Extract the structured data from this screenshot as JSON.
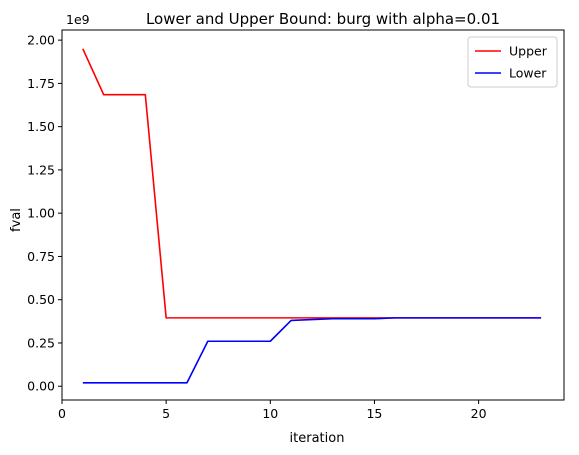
{
  "chart_data": {
    "type": "line",
    "title": "Lower and Upper Bound: burg with alpha=0.01",
    "xlabel": "iteration",
    "ylabel": "fval",
    "y_offset_label": "1e9",
    "xlim": [
      0.0,
      24.1
    ],
    "ylim": [
      -0.0795,
      2.0585
    ],
    "xticks": [
      0,
      5,
      10,
      15,
      20
    ],
    "xtick_labels": [
      "0",
      "5",
      "10",
      "15",
      "20"
    ],
    "yticks": [
      0.0,
      0.25,
      0.5,
      0.75,
      1.0,
      1.25,
      1.5,
      1.75,
      2.0
    ],
    "ytick_labels": [
      "0.00",
      "0.25",
      "0.50",
      "0.75",
      "1.00",
      "1.25",
      "1.50",
      "1.75",
      "2.00"
    ],
    "grid": false,
    "legend_position": "top-right",
    "series": [
      {
        "name": "Upper",
        "color": "#ff0000",
        "x": [
          1,
          2,
          3,
          4,
          5,
          6,
          7,
          8,
          9,
          10,
          11,
          12,
          13,
          14,
          15,
          16,
          17,
          18,
          19,
          20,
          21,
          22,
          23
        ],
        "y": [
          1.95,
          1.685,
          1.685,
          1.685,
          0.395,
          0.395,
          0.395,
          0.395,
          0.395,
          0.395,
          0.395,
          0.395,
          0.395,
          0.395,
          0.395,
          0.395,
          0.395,
          0.395,
          0.395,
          0.395,
          0.395,
          0.395,
          0.395
        ]
      },
      {
        "name": "Lower",
        "color": "#0000ff",
        "x": [
          1,
          2,
          3,
          4,
          5,
          6,
          7,
          8,
          9,
          10,
          11,
          12,
          13,
          14,
          15,
          16,
          17,
          18,
          19,
          20,
          21,
          22,
          23
        ],
        "y": [
          0.02,
          0.02,
          0.02,
          0.02,
          0.02,
          0.02,
          0.26,
          0.26,
          0.26,
          0.26,
          0.38,
          0.385,
          0.39,
          0.39,
          0.39,
          0.395,
          0.395,
          0.395,
          0.395,
          0.395,
          0.395,
          0.395,
          0.395
        ]
      }
    ]
  }
}
